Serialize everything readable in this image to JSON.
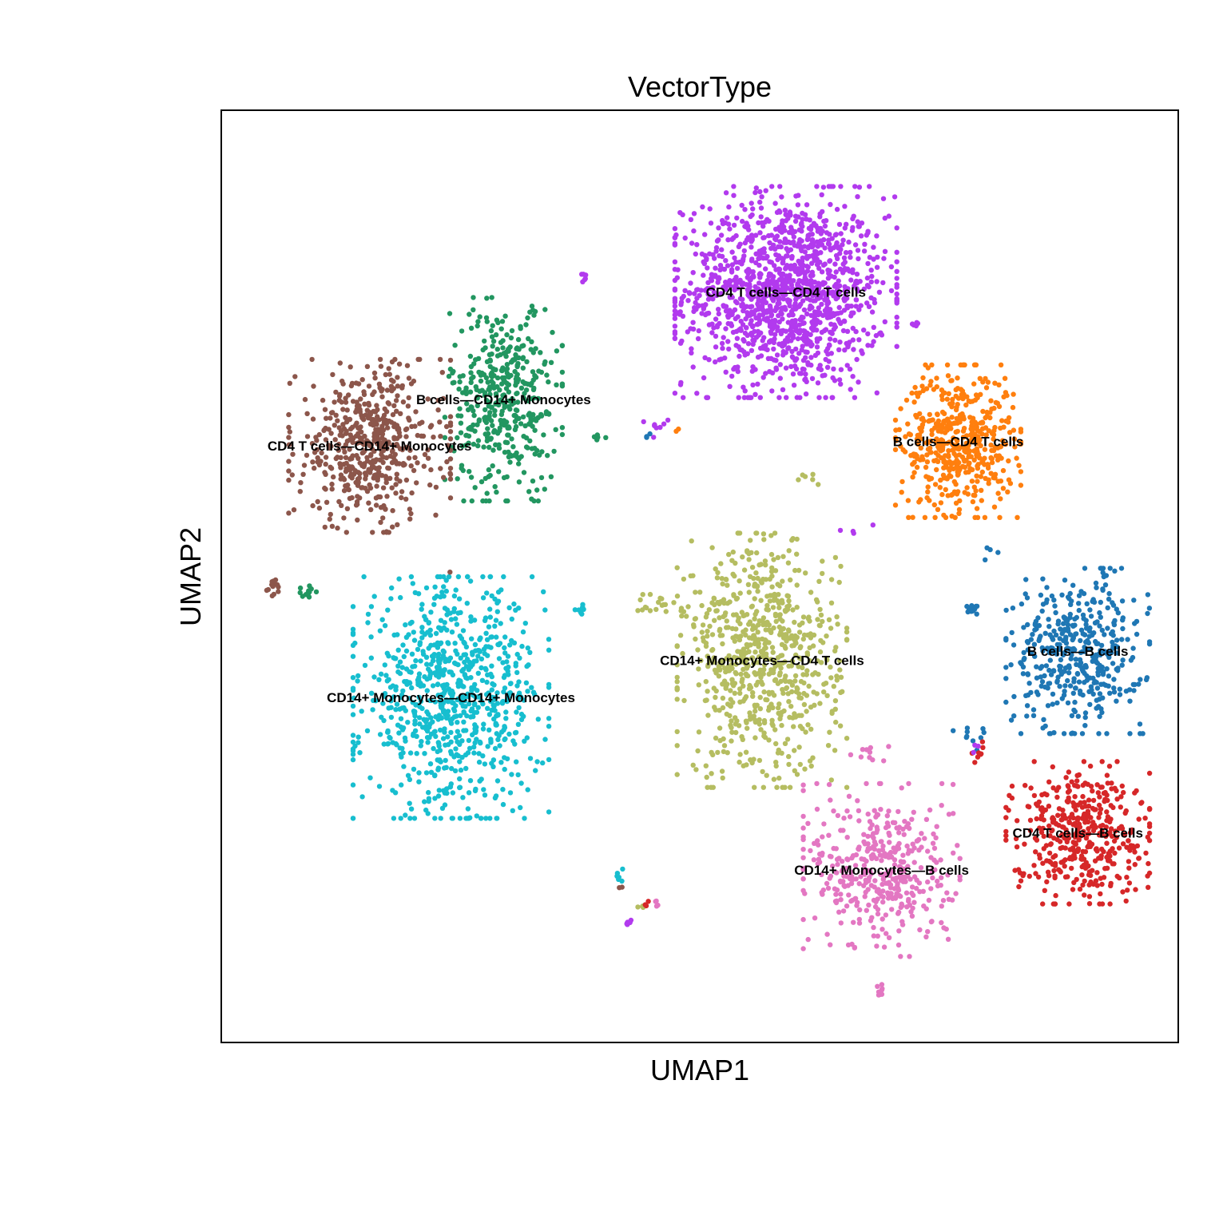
{
  "chart_data": {
    "type": "scatter",
    "title": "VectorType",
    "xlabel": "UMAP1",
    "ylabel": "UMAP2",
    "grid": false,
    "legend": "none",
    "xlim": [
      0,
      100
    ],
    "ylim": [
      0,
      100
    ],
    "clusters": [
      {
        "label": "CD4 T cells—CD4 T cells",
        "color": "#b23aee",
        "count": 1300,
        "center": [
          59.0,
          80.5
        ],
        "spread": [
          8.5,
          8.3
        ],
        "label_pos": [
          59.0,
          80.5
        ]
      },
      {
        "label": "B cells—CD4 T cells",
        "color": "#ff7f0e",
        "count": 500,
        "center": [
          77.0,
          64.5
        ],
        "spread": [
          4.8,
          6.0
        ],
        "label_pos": [
          77.0,
          64.5
        ]
      },
      {
        "label": "B cells—CD14+ Monocytes",
        "color": "#229660",
        "count": 420,
        "center": [
          29.5,
          69.0
        ],
        "spread": [
          4.5,
          8.0
        ],
        "label_pos": [
          29.5,
          69.0
        ]
      },
      {
        "label": "CD4 T cells—CD14+ Monocytes",
        "color": "#8c564b",
        "count": 520,
        "center": [
          15.5,
          64.0
        ],
        "spread": [
          6.2,
          6.8
        ],
        "label_pos": [
          15.5,
          64.0
        ]
      },
      {
        "label": "CD14+ Monocytes—CD14+ Monocytes",
        "color": "#17becf",
        "count": 820,
        "center": [
          24.0,
          37.0
        ],
        "spread": [
          7.5,
          9.5
        ],
        "label_pos": [
          24.0,
          37.0
        ]
      },
      {
        "label": "CD14+ Monocytes—CD4 T cells",
        "color": "#b5bd61",
        "count": 720,
        "center": [
          56.5,
          41.0
        ],
        "spread": [
          6.5,
          10.0
        ],
        "label_pos": [
          56.5,
          41.0
        ]
      },
      {
        "label": "B cells—B cells",
        "color": "#1f77b4",
        "count": 420,
        "center": [
          89.5,
          42.0
        ],
        "spread": [
          5.5,
          6.5
        ],
        "label_pos": [
          89.5,
          42.0
        ]
      },
      {
        "label": "CD14+ Monocytes—B cells",
        "color": "#e377c2",
        "count": 420,
        "center": [
          69.0,
          18.5
        ],
        "spread": [
          6.0,
          6.8
        ],
        "label_pos": [
          69.0,
          18.5
        ]
      },
      {
        "label": "CD4 T cells—B cells",
        "color": "#d62728",
        "count": 420,
        "center": [
          89.5,
          22.5
        ],
        "spread": [
          5.5,
          5.6
        ],
        "label_pos": [
          89.5,
          22.5
        ]
      }
    ],
    "outliers": [
      {
        "color": "#8c564b",
        "center": [
          5.5,
          49.0
        ],
        "spread": [
          0.6,
          0.8
        ],
        "count": 14
      },
      {
        "color": "#229660",
        "center": [
          9.0,
          48.5
        ],
        "spread": [
          0.8,
          0.7
        ],
        "count": 12
      },
      {
        "color": "#b23aee",
        "center": [
          38.0,
          82.0
        ],
        "spread": [
          0.4,
          0.5
        ],
        "count": 6
      },
      {
        "color": "#229660",
        "center": [
          32.5,
          78.5
        ],
        "spread": [
          0.5,
          0.5
        ],
        "count": 5
      },
      {
        "color": "#229660",
        "center": [
          39.5,
          65.0
        ],
        "spread": [
          0.8,
          0.4
        ],
        "count": 5
      },
      {
        "color": "#b23aee",
        "center": [
          45.5,
          66.0
        ],
        "spread": [
          1.0,
          0.8
        ],
        "count": 8
      },
      {
        "color": "#1f77b4",
        "center": [
          44.5,
          65.0
        ],
        "spread": [
          0.3,
          0.3
        ],
        "count": 3
      },
      {
        "color": "#ff7f0e",
        "center": [
          47.5,
          65.5
        ],
        "spread": [
          0.3,
          0.3
        ],
        "count": 2
      },
      {
        "color": "#17becf",
        "center": [
          38.0,
          46.5
        ],
        "spread": [
          1.4,
          0.4
        ],
        "count": 8
      },
      {
        "color": "#b5bd61",
        "center": [
          46.0,
          47.0
        ],
        "spread": [
          3.0,
          1.2
        ],
        "count": 20
      },
      {
        "color": "#b5bd61",
        "center": [
          61.0,
          60.5
        ],
        "spread": [
          1.5,
          0.6
        ],
        "count": 6
      },
      {
        "color": "#b23aee",
        "center": [
          65.5,
          55.0
        ],
        "spread": [
          2.0,
          1.0
        ],
        "count": 4
      },
      {
        "color": "#b23aee",
        "center": [
          72.5,
          77.0
        ],
        "spread": [
          0.6,
          0.4
        ],
        "count": 5
      },
      {
        "color": "#1f77b4",
        "center": [
          78.5,
          46.5
        ],
        "spread": [
          0.6,
          0.4
        ],
        "count": 14
      },
      {
        "color": "#1f77b4",
        "center": [
          80.0,
          52.5
        ],
        "spread": [
          1.0,
          0.6
        ],
        "count": 4
      },
      {
        "color": "#1f77b4",
        "center": [
          78.0,
          33.0
        ],
        "spread": [
          1.5,
          1.2
        ],
        "count": 10
      },
      {
        "color": "#d62728",
        "center": [
          79.0,
          31.0
        ],
        "spread": [
          1.0,
          1.0
        ],
        "count": 8
      },
      {
        "color": "#b23aee",
        "center": [
          78.5,
          32.0
        ],
        "spread": [
          0.8,
          0.8
        ],
        "count": 3
      },
      {
        "color": "#e377c2",
        "center": [
          68.5,
          31.0
        ],
        "spread": [
          2.0,
          1.2
        ],
        "count": 10
      },
      {
        "color": "#e377c2",
        "center": [
          69.0,
          5.5
        ],
        "spread": [
          0.4,
          0.7
        ],
        "count": 8
      },
      {
        "color": "#17becf",
        "center": [
          41.5,
          18.0
        ],
        "spread": [
          0.5,
          0.6
        ],
        "count": 6
      },
      {
        "color": "#8c564b",
        "center": [
          41.8,
          16.6
        ],
        "spread": [
          0.2,
          0.2
        ],
        "count": 2
      },
      {
        "color": "#b23aee",
        "center": [
          42.5,
          12.8
        ],
        "spread": [
          0.5,
          0.4
        ],
        "count": 8
      },
      {
        "color": "#b5bd61",
        "center": [
          44.0,
          14.5
        ],
        "spread": [
          0.4,
          0.4
        ],
        "count": 5
      },
      {
        "color": "#d62728",
        "center": [
          44.5,
          14.8
        ],
        "spread": [
          0.3,
          0.3
        ],
        "count": 3
      },
      {
        "color": "#e377c2",
        "center": [
          45.5,
          14.8
        ],
        "spread": [
          0.4,
          0.3
        ],
        "count": 4
      },
      {
        "color": "#8c564b",
        "center": [
          24.0,
          50.5
        ],
        "spread": [
          0.2,
          0.2
        ],
        "count": 1
      }
    ]
  }
}
